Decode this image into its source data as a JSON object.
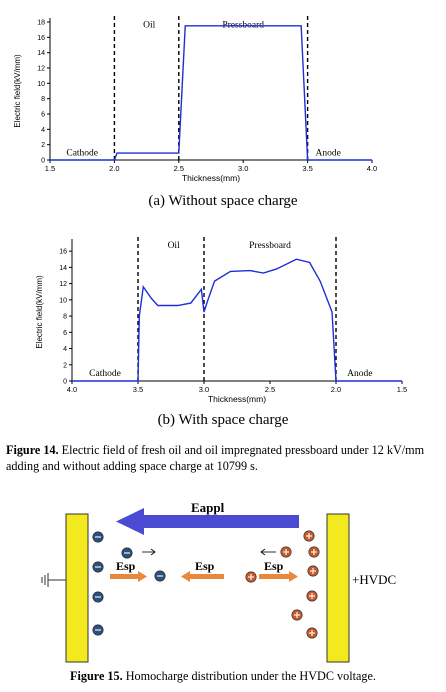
{
  "chart_data": [
    {
      "type": "line",
      "ylabel": "Electric field(kV/mm)",
      "xlabel": "Thickness(mm)",
      "xlim": [
        1.5,
        4.0
      ],
      "ylim": [
        0,
        18
      ],
      "x_ticks": [
        "1.5",
        "2.0",
        "2.5",
        "3.0",
        "3.5",
        "4.0"
      ],
      "x_tick_values": [
        1.5,
        2.0,
        2.5,
        3.0,
        3.5,
        4.0
      ],
      "y_ticks": [
        "0",
        "2",
        "4",
        "6",
        "8",
        "10",
        "12",
        "14",
        "16",
        "18"
      ],
      "dashed_boundaries": [
        2.0,
        2.5,
        3.5
      ],
      "region_labels": [
        {
          "text": "Cathode",
          "x": 1.75,
          "y": 0.6
        },
        {
          "text": "Oil",
          "x": 2.27,
          "y": 17.3
        },
        {
          "text": "Pressboard",
          "x": 3.0,
          "y": 17.3
        },
        {
          "text": "Anode",
          "x": 3.66,
          "y": 0.6
        }
      ],
      "series": [
        {
          "color": "#1f2fd6",
          "x": [
            1.5,
            2.0,
            2.02,
            2.5,
            2.55,
            3.45,
            3.5,
            4.0
          ],
          "y": [
            0,
            0,
            0.9,
            0.9,
            17.5,
            17.5,
            0,
            0
          ]
        }
      ],
      "grid": false
    },
    {
      "type": "line",
      "ylabel": "Electric field(kV/mm)",
      "xlabel": "Thickness(mm)",
      "xlim": [
        4.0,
        1.5
      ],
      "ylim": [
        0,
        17
      ],
      "x_ticks": [
        "4.0",
        "3.5",
        "3.0",
        "2.5",
        "2.0",
        "1.5"
      ],
      "x_tick_values": [
        4.0,
        3.5,
        3.0,
        2.5,
        2.0,
        1.5
      ],
      "y_ticks": [
        "0",
        "2",
        "4",
        "6",
        "8",
        "10",
        "12",
        "14",
        "16"
      ],
      "dashed_boundaries": [
        3.5,
        3.0,
        2.0
      ],
      "region_labels": [
        {
          "text": "Cathode",
          "x": 3.75,
          "y": 0.6
        },
        {
          "text": "Oil",
          "x": 3.23,
          "y": 16.4
        },
        {
          "text": "Pressboard",
          "x": 2.5,
          "y": 16.4
        },
        {
          "text": "Anode",
          "x": 1.82,
          "y": 0.6
        }
      ],
      "series": [
        {
          "color": "#1f2fd6",
          "x": [
            4.0,
            3.5,
            3.49,
            3.46,
            3.4,
            3.35,
            3.2,
            3.1,
            3.02,
            3.0,
            2.97,
            2.92,
            2.8,
            2.65,
            2.55,
            2.45,
            2.3,
            2.2,
            2.12,
            2.03,
            2.0,
            1.5
          ],
          "y": [
            0,
            0,
            8.0,
            11.6,
            10.2,
            9.3,
            9.3,
            9.6,
            11.3,
            8.5,
            10.0,
            12.3,
            13.5,
            13.6,
            13.3,
            13.8,
            15.0,
            14.6,
            12.3,
            8.5,
            0,
            0
          ]
        }
      ],
      "grid": false
    }
  ],
  "figure14": {
    "sub_a": "(a)  Without space charge",
    "sub_b": "(b)  With space charge",
    "label": "Figure 14.",
    "text": " Electric field of fresh oil and oil impregnated pressboard under 12 kV/mm adding and without adding space charge at 10799 s."
  },
  "figure15": {
    "eappl": "Eappl",
    "esp_left": "Esp",
    "esp_middle": "Esp",
    "esp_right": "Esp",
    "hvdc": "+HVDC",
    "label": "Figure 15.",
    "text": " Homocharge distribution under the HVDC voltage.",
    "colors": {
      "electrode": "#f2ea1e",
      "eappl_arrow": "#4a4bd2",
      "esp_arrow": "#e9873a",
      "negative_charge": "#2c4f7c",
      "positive_charge": "#c65b2e"
    }
  }
}
